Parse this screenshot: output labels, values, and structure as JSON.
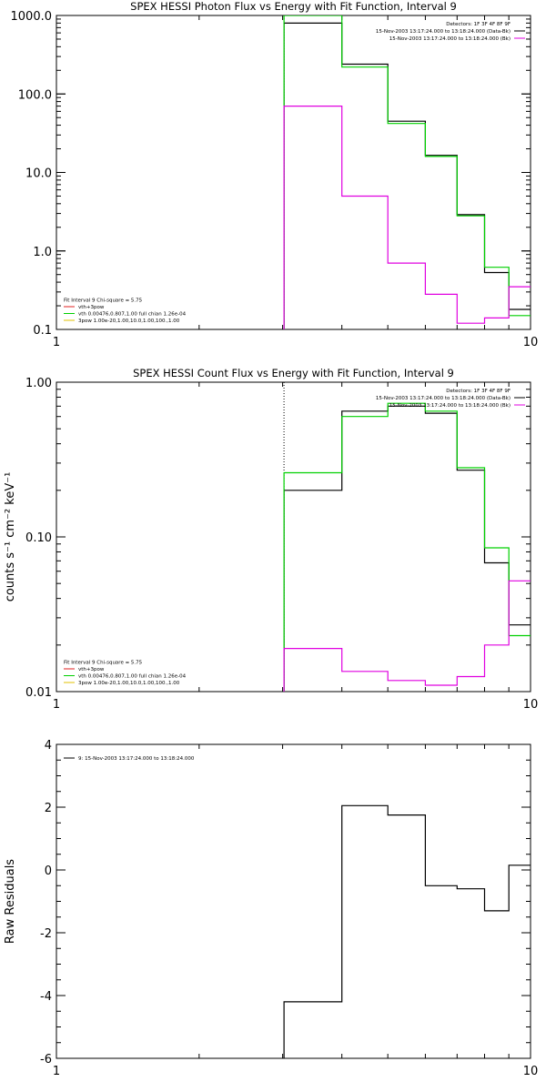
{
  "chart_data": [
    {
      "type": "line",
      "title": "SPEX HESSI Photon Flux vs Energy with Fit Function, Interval 9",
      "xlabel": "",
      "ylabel": "",
      "xscale": "log",
      "yscale": "log",
      "xlim": [
        1,
        10
      ],
      "ylim": [
        0.1,
        1000
      ],
      "xticks": [
        "1",
        "10"
      ],
      "yticks": [
        "0.1",
        "1.0",
        "10.0",
        "100.0",
        "1000.0"
      ],
      "info_lines": [
        {
          "text": "Detectors: 1F 3F 4F 8F 9F",
          "color": ""
        },
        {
          "text": "15-Nov-2003 13:17:24.000 to 13:18:24.000 (Data-Bk)",
          "color": "#000000"
        },
        {
          "text": "15-Nov-2003 13:17:24.000 to 13:18:24.000 (Bk)",
          "color": "#e000e0"
        }
      ],
      "legend": [
        {
          "text": "Fit Interval 9   Chi-square = 5.75",
          "color": ""
        },
        {
          "text": "vth+3pow",
          "color": "#e02020"
        },
        {
          "text": "vth 0.00476,0.807,1.00   full chian 1.26e-04",
          "color": "#00d000"
        },
        {
          "text": "3pow 1.00e-20,1.00,10.0,1.00,100.,1.00",
          "color": "#e0c000"
        }
      ],
      "vline": {
        "x": 3.02,
        "style": "dotted"
      },
      "series": [
        {
          "color": "#000000",
          "style": "step",
          "bin_edges": [
            3.02,
            4.0,
            5.0,
            6.0,
            7.0,
            8.0,
            9.0,
            10.0
          ],
          "values": [
            800,
            240,
            45,
            16.5,
            2.9,
            0.53,
            0.18
          ]
        },
        {
          "color": "#00d000",
          "style": "step",
          "bin_edges": [
            3.02,
            4.0,
            5.0,
            6.0,
            7.0,
            8.0,
            9.0,
            10.0
          ],
          "values": [
            1000,
            220,
            42,
            16.0,
            2.8,
            0.62,
            0.15
          ]
        },
        {
          "color": "#e000e0",
          "style": "step",
          "bin_edges": [
            3.02,
            4.0,
            5.0,
            6.0,
            7.0,
            8.0,
            9.0,
            10.0
          ],
          "values": [
            70,
            5.0,
            0.7,
            0.28,
            0.12,
            0.14,
            0.35
          ]
        }
      ]
    },
    {
      "type": "line",
      "title": "SPEX HESSI Count Flux vs Energy with Fit Function, Interval 9",
      "xlabel": "",
      "ylabel": "counts s⁻¹ cm⁻² keV⁻¹",
      "xscale": "log",
      "yscale": "log",
      "xlim": [
        1,
        10
      ],
      "ylim": [
        0.01,
        1.0
      ],
      "xticks": [
        "1",
        "10"
      ],
      "yticks": [
        "0.01",
        "0.10",
        "1.00"
      ],
      "info_lines": [
        {
          "text": "Detectors: 1F 3F 4F 8F 9F",
          "color": ""
        },
        {
          "text": "15-Nov-2003 13:17:24.000 to 13:18:24.000 (Data-Bk)",
          "color": "#000000"
        },
        {
          "text": "15-Nov-2003 13:17:24.000 to 13:18:24.000 (Bk)",
          "color": "#e000e0"
        }
      ],
      "legend": [
        {
          "text": "Fit Interval 9   Chi-square = 5.75",
          "color": ""
        },
        {
          "text": "vth+3pow",
          "color": "#e02020"
        },
        {
          "text": "vth 0.00476,0.807,1.00   full chian 1.26e-04",
          "color": "#00d000"
        },
        {
          "text": "3pow 1.00e-20,1.00,10.0,1.00,100.,1.00",
          "color": "#e0c000"
        }
      ],
      "vline": {
        "x": 3.02,
        "style": "dotted"
      },
      "series": [
        {
          "color": "#000000",
          "style": "step",
          "bin_edges": [
            3.02,
            4.0,
            5.0,
            6.0,
            7.0,
            8.0,
            9.0,
            10.0
          ],
          "values": [
            0.2,
            0.65,
            0.7,
            0.63,
            0.27,
            0.068,
            0.027
          ]
        },
        {
          "color": "#00d000",
          "style": "step",
          "bin_edges": [
            3.02,
            4.0,
            5.0,
            6.0,
            7.0,
            8.0,
            9.0,
            10.0
          ],
          "values": [
            0.26,
            0.6,
            0.73,
            0.65,
            0.28,
            0.085,
            0.023
          ]
        },
        {
          "color": "#e000e0",
          "style": "step",
          "bin_edges": [
            3.02,
            4.0,
            5.0,
            6.0,
            7.0,
            8.0,
            9.0,
            10.0
          ],
          "values": [
            0.019,
            0.0135,
            0.0118,
            0.011,
            0.0125,
            0.02,
            0.052
          ]
        }
      ]
    },
    {
      "type": "line",
      "title": "",
      "xlabel": "",
      "ylabel": "Raw Residuals",
      "xscale": "log",
      "yscale": "linear",
      "xlim": [
        1,
        10
      ],
      "ylim": [
        -6,
        4
      ],
      "xticks": [
        "1",
        "10"
      ],
      "yticks": [
        "-6",
        "-4",
        "-2",
        "0",
        "2",
        "4"
      ],
      "info_lines": [],
      "legend": [
        {
          "text": "9: 15-Nov-2003 13:17:24.000 to 13:18:24.000",
          "color": "#000000"
        }
      ],
      "vline": null,
      "series": [
        {
          "color": "#000000",
          "style": "step",
          "bin_edges": [
            3.02,
            4.0,
            5.0,
            6.0,
            7.0,
            8.0,
            9.0,
            10.0
          ],
          "values": [
            -4.2,
            2.05,
            1.75,
            -0.5,
            -0.6,
            -1.3,
            0.15
          ]
        }
      ]
    }
  ]
}
